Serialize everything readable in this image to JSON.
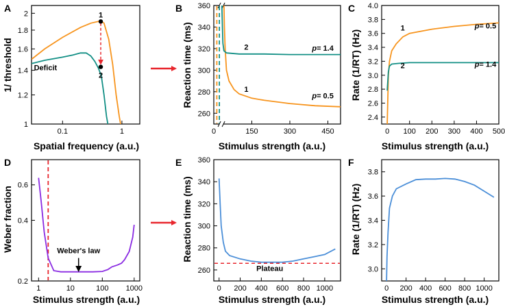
{
  "colors": {
    "orange": "#f7941d",
    "teal": "#128f85",
    "purple": "#8a2be2",
    "blue": "#4a8ed8",
    "red": "#e8262d",
    "black": "#000000"
  },
  "chart_data": [
    {
      "panel": "A",
      "type": "line",
      "xlabel": "Spatial frequency (a.u.)",
      "ylabel": "1/ threshold",
      "xscale": "log",
      "yscale": "log",
      "xlim": [
        0.03,
        2.0
      ],
      "ylim": [
        1.0,
        2.1
      ],
      "xticks": [
        {
          "v": 0.1,
          "t": "0.1"
        },
        {
          "v": 1,
          "t": "1"
        }
      ],
      "yticks": [
        {
          "v": 1,
          "t": "1"
        },
        {
          "v": 1.2,
          "t": "1.2"
        },
        {
          "v": 1.4,
          "t": "1.4"
        },
        {
          "v": 1.6,
          "t": "1.6"
        },
        {
          "v": 1.8,
          "t": "1.8"
        },
        {
          "v": 2,
          "t": "2"
        }
      ],
      "series": [
        {
          "name": "normal",
          "color": "orange",
          "points": [
            [
              0.03,
              1.5
            ],
            [
              0.05,
              1.6
            ],
            [
              0.1,
              1.72
            ],
            [
              0.2,
              1.83
            ],
            [
              0.3,
              1.88
            ],
            [
              0.4,
              1.9
            ],
            [
              0.45,
              1.9
            ],
            [
              0.5,
              1.88
            ],
            [
              0.6,
              1.7
            ],
            [
              0.7,
              1.45
            ],
            [
              0.8,
              1.2
            ],
            [
              0.9,
              1.05
            ],
            [
              0.95,
              1.0
            ]
          ]
        },
        {
          "name": "Deficit",
          "color": "teal",
          "points": [
            [
              0.03,
              1.46
            ],
            [
              0.05,
              1.49
            ],
            [
              0.1,
              1.52
            ],
            [
              0.15,
              1.54
            ],
            [
              0.2,
              1.56
            ],
            [
              0.25,
              1.56
            ],
            [
              0.3,
              1.53
            ],
            [
              0.35,
              1.48
            ],
            [
              0.4,
              1.42
            ],
            [
              0.45,
              1.35
            ],
            [
              0.5,
              1.2
            ],
            [
              0.55,
              1.05
            ],
            [
              0.58,
              1.0
            ]
          ]
        }
      ],
      "points": [
        {
          "label": "1",
          "x": 0.44,
          "y": 1.9
        },
        {
          "label": "2",
          "x": 0.44,
          "y": 1.43
        }
      ],
      "annotations": [
        {
          "text": "Deficit",
          "x": 0.033,
          "y": 1.4
        }
      ],
      "arrow": {
        "x": 0.44,
        "from": 1.88,
        "to": 1.46
      }
    },
    {
      "panel": "B",
      "type": "line",
      "xlabel": "Stimulus strength (a.u.)",
      "ylabel": "Reaction time (ms)",
      "xlim": [
        0,
        500
      ],
      "ylim": [
        250,
        360
      ],
      "xticks": [
        {
          "v": 0,
          "t": "0"
        },
        {
          "v": 150,
          "t": "150"
        },
        {
          "v": 300,
          "t": "300"
        },
        {
          "v": 450,
          "t": "450"
        }
      ],
      "yticks": [
        {
          "v": 260,
          "t": "260"
        },
        {
          "v": 280,
          "t": "280"
        },
        {
          "v": 300,
          "t": "300"
        },
        {
          "v": 320,
          "t": "320"
        },
        {
          "v": 340,
          "t": "340"
        },
        {
          "v": 360,
          "t": "360"
        }
      ],
      "axis_break": "//",
      "break_x": 30,
      "series": [
        {
          "name": "1",
          "color": "orange",
          "points": [
            [
              40,
              360
            ],
            [
              42,
              340
            ],
            [
              45,
              320
            ],
            [
              50,
              300
            ],
            [
              60,
              290
            ],
            [
              80,
              282
            ],
            [
              100,
              278
            ],
            [
              150,
              274
            ],
            [
              200,
              272
            ],
            [
              300,
              269
            ],
            [
              400,
              267
            ],
            [
              500,
              266
            ]
          ]
        },
        {
          "name": "2",
          "color": "teal",
          "points": [
            [
              32,
              360
            ],
            [
              34,
              340
            ],
            [
              36,
              325
            ],
            [
              40,
              318
            ],
            [
              50,
              316
            ],
            [
              100,
              315
            ],
            [
              200,
              315
            ],
            [
              300,
              314.5
            ],
            [
              500,
              314.5
            ]
          ]
        }
      ],
      "vlines": [
        {
          "x": 12,
          "color": "orange"
        },
        {
          "x": 22,
          "color": "teal"
        }
      ],
      "annotations": [
        {
          "text": "2",
          "x": 120,
          "y": 319
        },
        {
          "text": "p= 1.4",
          "x": 430,
          "y": 318
        },
        {
          "text": "1",
          "x": 120,
          "y": 280
        },
        {
          "text": "p= 0.5",
          "x": 430,
          "y": 274
        }
      ]
    },
    {
      "panel": "C",
      "type": "line",
      "xlabel": "Stimulus strength (a.u.)",
      "ylabel": "Rate (1/RT) (Hz)",
      "xlim": [
        -25,
        500
      ],
      "ylim": [
        2.3,
        4.0
      ],
      "xticks": [
        {
          "v": 0,
          "t": "0"
        },
        {
          "v": 100,
          "t": "100"
        },
        {
          "v": 200,
          "t": "200"
        },
        {
          "v": 300,
          "t": "300"
        },
        {
          "v": 400,
          "t": "400"
        },
        {
          "v": 500,
          "t": "500"
        }
      ],
      "yticks": [
        {
          "v": 2.4,
          "t": "2.4"
        },
        {
          "v": 2.6,
          "t": "2.6"
        },
        {
          "v": 2.8,
          "t": "2.8"
        },
        {
          "v": 3.0,
          "t": "3.0"
        },
        {
          "v": 3.2,
          "t": "3.2"
        },
        {
          "v": 3.4,
          "t": "3.4"
        },
        {
          "v": 3.6,
          "t": "3.6"
        },
        {
          "v": 3.8,
          "t": "3.8"
        },
        {
          "v": 4.0,
          "t": "4.0"
        }
      ],
      "series": [
        {
          "name": "1",
          "color": "orange",
          "points": [
            [
              0,
              2.3
            ],
            [
              5,
              3.0
            ],
            [
              10,
              3.2
            ],
            [
              20,
              3.35
            ],
            [
              40,
              3.45
            ],
            [
              70,
              3.55
            ],
            [
              100,
              3.6
            ],
            [
              200,
              3.66
            ],
            [
              300,
              3.7
            ],
            [
              400,
              3.73
            ],
            [
              500,
              3.75
            ]
          ]
        },
        {
          "name": "2",
          "color": "teal",
          "points": [
            [
              0,
              2.78
            ],
            [
              5,
              3.05
            ],
            [
              10,
              3.13
            ],
            [
              20,
              3.16
            ],
            [
              50,
              3.17
            ],
            [
              100,
              3.18
            ],
            [
              500,
              3.18
            ]
          ]
        }
      ],
      "annotations": [
        {
          "text": "1",
          "x": 60,
          "y": 3.64
        },
        {
          "text": "p= 0.5",
          "x": 440,
          "y": 3.67
        },
        {
          "text": "2",
          "x": 60,
          "y": 3.1
        },
        {
          "text": "p= 1.4",
          "x": 440,
          "y": 3.12
        }
      ]
    },
    {
      "panel": "D",
      "type": "line",
      "xlabel": "Stimulus strength (a.u.)",
      "ylabel": "Weber fraction",
      "xscale": "log",
      "yscale": "log",
      "xlim": [
        0.6,
        1500
      ],
      "ylim": [
        0.2,
        0.8
      ],
      "xticks": [
        {
          "v": 1,
          "t": "1"
        },
        {
          "v": 10,
          "t": "10"
        },
        {
          "v": 100,
          "t": "100"
        },
        {
          "v": 1000,
          "t": "1000"
        }
      ],
      "yticks": [
        {
          "v": 0.2,
          "t": "0.2"
        },
        {
          "v": 0.4,
          "t": "0.4"
        },
        {
          "v": 0.6,
          "t": "0.6"
        }
      ],
      "series": [
        {
          "name": "weber",
          "color": "purple",
          "points": [
            [
              1,
              0.65
            ],
            [
              1.2,
              0.5
            ],
            [
              1.5,
              0.35
            ],
            [
              2,
              0.26
            ],
            [
              3,
              0.225
            ],
            [
              5,
              0.222
            ],
            [
              10,
              0.222
            ],
            [
              50,
              0.222
            ],
            [
              100,
              0.223
            ],
            [
              150,
              0.228
            ],
            [
              200,
              0.235
            ],
            [
              300,
              0.24
            ],
            [
              400,
              0.245
            ],
            [
              500,
              0.255
            ],
            [
              700,
              0.28
            ],
            [
              900,
              0.33
            ],
            [
              1000,
              0.38
            ]
          ]
        }
      ],
      "vlines": [
        {
          "x": 2.0,
          "color": "red"
        }
      ],
      "annotations": [
        {
          "text": "Weber's law",
          "x": 18,
          "y": 0.275
        }
      ],
      "arrow": {
        "x": 18,
        "from": 0.26,
        "to": 0.225
      }
    },
    {
      "panel": "E",
      "type": "line",
      "xlabel": "Stimulus strength (a.u.)",
      "ylabel": "Reaction time (ms)",
      "xlim": [
        -50,
        1150
      ],
      "ylim": [
        250,
        360
      ],
      "xticks": [
        {
          "v": 0,
          "t": "0"
        },
        {
          "v": 200,
          "t": "200"
        },
        {
          "v": 400,
          "t": "400"
        },
        {
          "v": 600,
          "t": "600"
        },
        {
          "v": 800,
          "t": "800"
        },
        {
          "v": 1000,
          "t": "1000"
        }
      ],
      "yticks": [
        {
          "v": 260,
          "t": "260"
        },
        {
          "v": 280,
          "t": "280"
        },
        {
          "v": 300,
          "t": "300"
        },
        {
          "v": 320,
          "t": "320"
        },
        {
          "v": 340,
          "t": "340"
        },
        {
          "v": 360,
          "t": "360"
        }
      ],
      "series": [
        {
          "name": "rt",
          "color": "blue",
          "points": [
            [
              0,
              343
            ],
            [
              10,
              320
            ],
            [
              20,
              300
            ],
            [
              40,
              285
            ],
            [
              60,
              277
            ],
            [
              100,
              273
            ],
            [
              200,
              270
            ],
            [
              300,
              268
            ],
            [
              400,
              267
            ],
            [
              500,
              267
            ],
            [
              600,
              267
            ],
            [
              700,
              268
            ],
            [
              800,
              270
            ],
            [
              900,
              272
            ],
            [
              1000,
              274
            ],
            [
              1100,
              279
            ]
          ]
        }
      ],
      "hlines": [
        {
          "y": 266,
          "color": "red"
        }
      ],
      "annotations": [
        {
          "text": "Plateau",
          "x": 480,
          "y": 259
        }
      ]
    },
    {
      "panel": "F",
      "type": "line",
      "xlabel": "Stimulus strength (a.u.)",
      "ylabel": "Rate (1/RT) (Hz)",
      "xlim": [
        -50,
        1150
      ],
      "ylim": [
        2.9,
        3.9
      ],
      "xticks": [
        {
          "v": 0,
          "t": "0"
        },
        {
          "v": 200,
          "t": "200"
        },
        {
          "v": 400,
          "t": "400"
        },
        {
          "v": 600,
          "t": "600"
        },
        {
          "v": 800,
          "t": "800"
        },
        {
          "v": 1000,
          "t": "1000"
        }
      ],
      "yticks": [
        {
          "v": 3.0,
          "t": "3.0"
        },
        {
          "v": 3.2,
          "t": "3.2"
        },
        {
          "v": 3.4,
          "t": "3.4"
        },
        {
          "v": 3.6,
          "t": "3.6"
        },
        {
          "v": 3.8,
          "t": "3.8"
        }
      ],
      "series": [
        {
          "name": "rate",
          "color": "blue",
          "points": [
            [
              0,
              2.9
            ],
            [
              5,
              3.1
            ],
            [
              15,
              3.3
            ],
            [
              30,
              3.5
            ],
            [
              60,
              3.6
            ],
            [
              100,
              3.66
            ],
            [
              200,
              3.7
            ],
            [
              300,
              3.735
            ],
            [
              400,
              3.74
            ],
            [
              500,
              3.74
            ],
            [
              600,
              3.745
            ],
            [
              700,
              3.74
            ],
            [
              800,
              3.72
            ],
            [
              900,
              3.69
            ],
            [
              1000,
              3.64
            ],
            [
              1100,
              3.59
            ]
          ]
        }
      ]
    }
  ]
}
